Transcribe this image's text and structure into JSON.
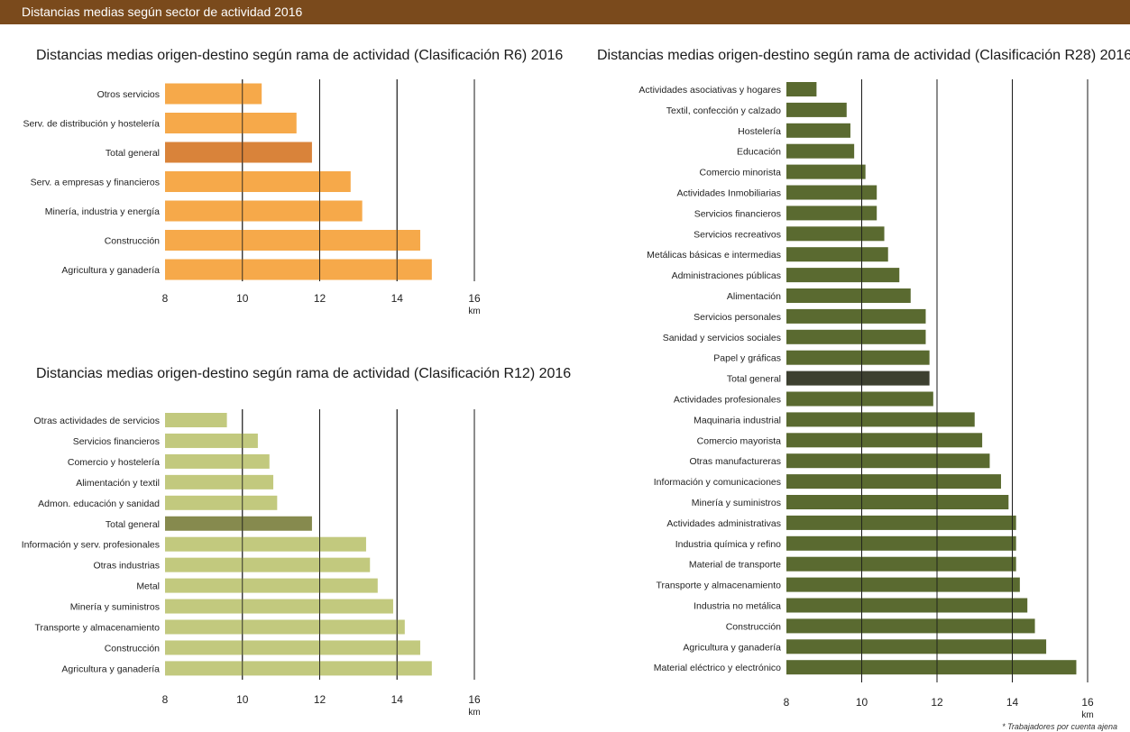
{
  "header": {
    "title": "Distancias medias según sector de actividad 2016"
  },
  "footnote": "* Trabajadores por cuenta ajena",
  "colors": {
    "header_bg": "#7a4a1c"
  },
  "chart_data": [
    {
      "type": "bar",
      "orientation": "horizontal",
      "title": "Distancias medias origen-destino según rama de actividad (Clasificación R6) 2016",
      "xlabel": "km",
      "xlim": [
        8,
        16
      ],
      "xticks": [
        8,
        10,
        12,
        14,
        16
      ],
      "grid": true,
      "bar_color": "#f6a94a",
      "highlight_color": "#d9833a",
      "highlight": "Total general",
      "categories": [
        "Otros servicios",
        "Serv. de distribución y hostelería",
        "Total general",
        "Serv. a empresas y financieros",
        "Minería, industria y energía",
        "Construcción",
        "Agricultura y ganadería"
      ],
      "values": [
        10.5,
        11.4,
        11.8,
        12.8,
        13.1,
        14.6,
        14.9
      ]
    },
    {
      "type": "bar",
      "orientation": "horizontal",
      "title": "Distancias medias origen-destino según rama de actividad (Clasificación R12) 2016",
      "xlabel": "km",
      "xlim": [
        8,
        16
      ],
      "xticks": [
        8,
        10,
        12,
        14,
        16
      ],
      "grid": true,
      "bar_color": "#c2c97e",
      "highlight_color": "#868a4e",
      "highlight": "Total general",
      "categories": [
        "Otras actividades de servicios",
        "Servicios financieros",
        "Comercio y hostelería",
        "Alimentación y textil",
        "Admon. educación y sanidad",
        "Total general",
        "Información y serv. profesionales",
        "Otras industrias",
        "Metal",
        "Minería y suministros",
        "Transporte y almacenamiento",
        "Construcción",
        "Agricultura y ganadería"
      ],
      "values": [
        9.6,
        10.4,
        10.7,
        10.8,
        10.9,
        11.8,
        13.2,
        13.3,
        13.5,
        13.9,
        14.2,
        14.6,
        14.9
      ]
    },
    {
      "type": "bar",
      "orientation": "horizontal",
      "title": "Distancias medias origen-destino según rama de actividad (Clasificación R28) 2016",
      "xlabel": "km",
      "xlim": [
        8,
        16
      ],
      "xticks": [
        8,
        10,
        12,
        14,
        16
      ],
      "grid": true,
      "bar_color": "#5a6a30",
      "highlight_color": "#3d4030",
      "highlight": "Total general",
      "categories": [
        "Actividades asociativas y hogares",
        "Textil, confección y calzado",
        "Hostelería",
        "Educación",
        "Comercio minorista",
        "Actividades Inmobiliarias",
        "Servicios financieros",
        "Servicios  recreativos",
        "Metálicas básicas e intermedias",
        "Administraciones públicas",
        "Alimentación",
        "Servicios personales",
        "Sanidad y servicios sociales",
        "Papel y gráficas",
        "Total general",
        "Actividades profesionales",
        "Maquinaria industrial",
        "Comercio mayorista",
        "Otras manufactureras",
        "Información y comunicaciones",
        "Minería y suministros",
        "Actividades administrativas",
        "Industria química y refino",
        "Material de transporte",
        "Transporte y almacenamiento",
        "Industria no metálica",
        "Construcción",
        "Agricultura y ganadería",
        "Material eléctrico y electrónico"
      ],
      "values": [
        8.8,
        9.6,
        9.7,
        9.8,
        10.1,
        10.4,
        10.4,
        10.6,
        10.7,
        11.0,
        11.3,
        11.7,
        11.7,
        11.8,
        11.8,
        11.9,
        13.0,
        13.2,
        13.4,
        13.7,
        13.9,
        14.1,
        14.1,
        14.1,
        14.2,
        14.4,
        14.6,
        14.9,
        15.7
      ]
    }
  ]
}
